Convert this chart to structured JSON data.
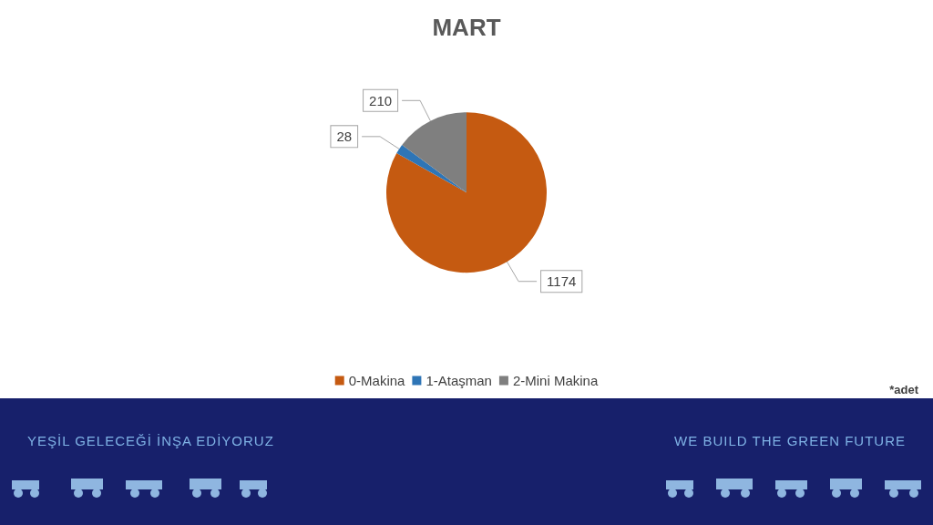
{
  "chart_data": {
    "type": "pie",
    "title": "MART",
    "categories": [
      "0-Makina",
      "1-Ataşman",
      "2-Mini Makina"
    ],
    "values": [
      1174,
      28,
      210
    ],
    "colors": [
      "#c55a11",
      "#2e75b6",
      "#7f7f7f"
    ],
    "data_labels": true,
    "legend": "bottom",
    "annotations": [
      "*adet",
      "YEŞİL GELECEĞİ İNŞA EDİYORUZ",
      "WE BUILD THE GREEN FUTURE"
    ]
  }
}
